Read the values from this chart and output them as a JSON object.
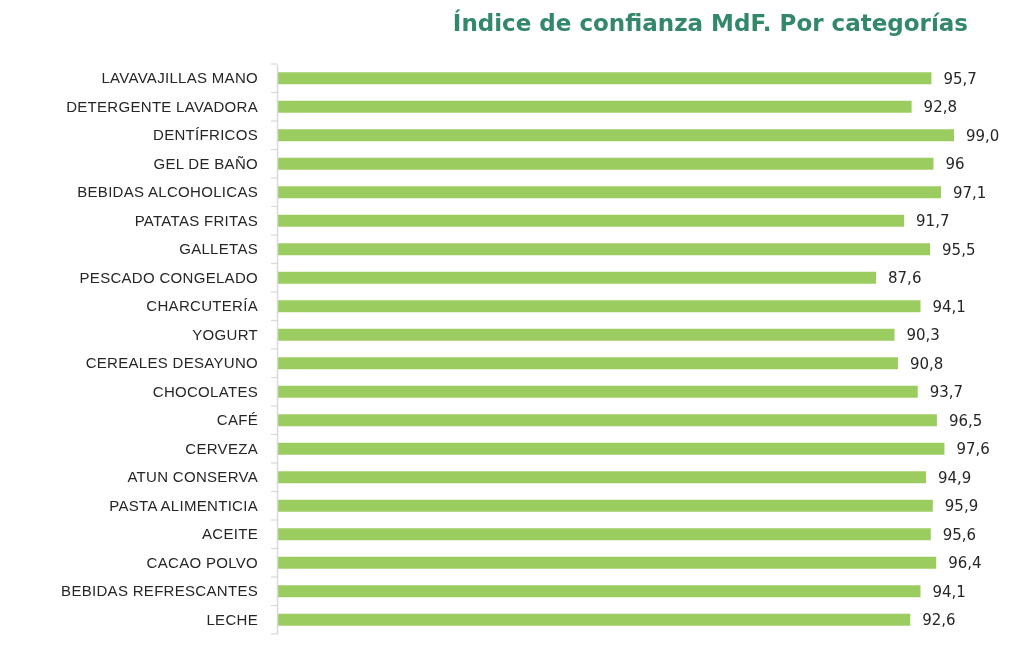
{
  "chart_data": {
    "type": "bar",
    "orientation": "horizontal",
    "title": "Índice de confianza MdF. Por categorías",
    "categories": [
      "LAVAVAJILLAS MANO",
      "DETERGENTE LAVADORA",
      "DENTÍFRICOS",
      "GEL DE BAÑO",
      "BEBIDAS ALCOHOLICAS",
      "PATATAS FRITAS",
      "GALLETAS",
      "PESCADO CONGELADO",
      "CHARCUTERÍA",
      "YOGURT",
      "CEREALES DESAYUNO",
      "CHOCOLATES",
      "CAFÉ",
      "CERVEZA",
      "ATUN CONSERVA",
      "PASTA ALIMENTICIA",
      "ACEITE",
      "CACAO POLVO",
      "BEBIDAS REFRESCANTES",
      "LECHE"
    ],
    "values": [
      95.7,
      92.8,
      99.0,
      96,
      97.1,
      91.7,
      95.5,
      87.6,
      94.1,
      90.3,
      90.8,
      93.7,
      96.5,
      97.6,
      94.9,
      95.9,
      95.6,
      96.4,
      94.1,
      92.6
    ],
    "value_labels": [
      "95,7",
      "92,8",
      "99,0",
      "96",
      "97,1",
      "91,7",
      "95,5",
      "87,6",
      "94,1",
      "90,3",
      "90,8",
      "93,7",
      "96,5",
      "97,6",
      "94,9",
      "95,9",
      "95,6",
      "96,4",
      "94,1",
      "92,6"
    ],
    "color": "#9bcc5f",
    "tick_labels": "y"
  }
}
